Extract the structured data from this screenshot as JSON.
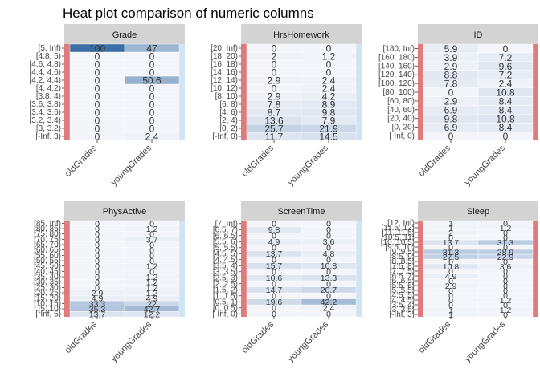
{
  "chart_data": {
    "type": "heatmap",
    "title": "Heat plot comparison of numeric columns",
    "columns": [
      "oldGrades",
      "youngGrades"
    ],
    "colors": {
      "low": "#f3f5fa",
      "high": "#3b6ea5",
      "strip_bg": "#d3d3d3",
      "left_bar": "#e07b7b",
      "right_bar_blue": "#cfe4f5"
    },
    "panels": [
      {
        "name": "Grade",
        "rows": [
          "[-Inf, 3)",
          "[3, 3.2)",
          "[3.2, 3.4)",
          "[3.4, 3.6)",
          "[3.6, 3.8)",
          "[3.8, 4)",
          "[4, 4.2)",
          "[4.2, 4.4)",
          "[4.4, 4.6)",
          "[4.6, 4.8)",
          "[4.8, 5)",
          "[5, Inf)"
        ],
        "values": [
          [
            0,
            2.4
          ],
          [
            0,
            0
          ],
          [
            0,
            0
          ],
          [
            0,
            0
          ],
          [
            0,
            0
          ],
          [
            0,
            0
          ],
          [
            0,
            0
          ],
          [
            0,
            50.6
          ],
          [
            0,
            0
          ],
          [
            0,
            0
          ],
          [
            0,
            0
          ],
          [
            100,
            47
          ]
        ]
      },
      {
        "name": "HrsHomework",
        "rows": [
          "[-Inf, 0)",
          "[0, 2)",
          "[2, 4)",
          "[4, 6)",
          "[6, 8)",
          "[8, 10)",
          "[10, 12)",
          "[12, 14)",
          "[14, 16)",
          "[16, 18)",
          "[18, 20)",
          "[20, Inf)"
        ],
        "values": [
          [
            11.7,
            14.5
          ],
          [
            25.7,
            21.9
          ],
          [
            13.6,
            7.9
          ],
          [
            8.7,
            9.8
          ],
          [
            7.8,
            8.9
          ],
          [
            2.9,
            4.2
          ],
          [
            0,
            2.4
          ],
          [
            2.9,
            2.4
          ],
          [
            0,
            0
          ],
          [
            0,
            0
          ],
          [
            2,
            1.2
          ],
          [
            0,
            0
          ]
        ]
      },
      {
        "name": "ID",
        "rows": [
          "[-Inf, 0)",
          "[0, 20)",
          "[20, 40)",
          "[40, 60)",
          "[60, 80)",
          "[80, 100)",
          "[100, 120)",
          "[120, 140)",
          "[140, 160)",
          "[160, 180)",
          "[180, Inf)"
        ],
        "values": [
          [
            0,
            0
          ],
          [
            6.9,
            8.4
          ],
          [
            9.8,
            10.8
          ],
          [
            6.9,
            8.4
          ],
          [
            2.9,
            8.4
          ],
          [
            0,
            10.8
          ],
          [
            7.8,
            2.4
          ],
          [
            8.8,
            7.2
          ],
          [
            2.9,
            9.6
          ],
          [
            3.9,
            7.2
          ],
          [
            5.9,
            0
          ]
        ]
      },
      {
        "name": "PhysActive",
        "rows": [
          "[-Inf, 5)",
          "[5, 10)",
          "[10, 15)",
          "[15, 20)",
          "[20, 25)",
          "[25, 30)",
          "[30, 35)",
          "[35, 40)",
          "[40, 45)",
          "[45, 50)",
          "[50, 55)",
          "[55, 60)",
          "[60, 65)",
          "[65, 70)",
          "[70, 75)",
          "[75, 80)",
          "[80, 85)",
          "[85, Inf)"
        ],
        "values": [
          [
            13.7,
            12.2
          ],
          [
            35.3,
            42.7
          ],
          [
            33.3,
            22
          ],
          [
            4.9,
            4.9
          ],
          [
            2.9,
            1.2
          ],
          [
            0,
            1.2
          ],
          [
            0,
            1.2
          ],
          [
            0,
            1.2
          ],
          [
            0,
            0
          ],
          [
            0,
            1.2
          ],
          [
            0,
            0
          ],
          [
            0,
            0
          ],
          [
            0,
            0
          ],
          [
            0,
            0
          ],
          [
            0,
            3.7
          ],
          [
            0,
            0
          ],
          [
            0,
            1.2
          ],
          [
            0,
            0
          ]
        ]
      },
      {
        "name": "ScreenTime",
        "rows": [
          "[-Inf, 0)",
          "[0, 0.5)",
          "[0.5, 1)",
          "[1, 1.5)",
          "[1.5, 2)",
          "[2, 2.5)",
          "[2.5, 3)",
          "[3, 3.5)",
          "[3.5, 4)",
          "[4, 4.5)",
          "[4.5, 5)",
          "[5, 5.5)",
          "[5.5, 6)",
          "[6, 6.5)",
          "[6.5, 7)",
          "[7, Inf)"
        ],
        "values": [
          [
            0,
            0
          ],
          [
            0,
            2.4
          ],
          [
            19.6,
            42.2
          ],
          [
            0,
            0
          ],
          [
            14.7,
            20.7
          ],
          [
            0,
            0
          ],
          [
            10.6,
            13.3
          ],
          [
            0,
            0
          ],
          [
            15.7,
            10.8
          ],
          [
            0,
            0
          ],
          [
            13.7,
            4.8
          ],
          [
            0,
            0
          ],
          [
            4.9,
            3.6
          ],
          [
            0,
            0
          ],
          [
            9.8,
            0
          ],
          [
            0,
            0
          ]
        ]
      },
      {
        "name": "Sleep",
        "rows": [
          "[-Inf, 3)",
          "[3, 3.5)",
          "[3.5, 4)",
          "[4, 4.5)",
          "[4.5, 5)",
          "[5, 5.5)",
          "[5.5, 6)",
          "[6, 6.5)",
          "[6.5, 7)",
          "[7, 7.5)",
          "[7.5, 8)",
          "[8, 8.5)",
          "[8.5, 9)",
          "[9, 9.5)",
          "[9.5, 10)",
          "[10, 10.5)",
          "[10.5, 11)",
          "[11, 11.5)",
          "[11.5, 12)",
          "[12, Inf)"
        ],
        "values": [
          [
            1,
            0
          ],
          [
            1,
            1.2
          ],
          [
            0,
            0
          ],
          [
            0,
            1.2
          ],
          [
            0,
            0
          ],
          [
            0,
            0
          ],
          [
            2.9,
            0
          ],
          [
            0,
            0
          ],
          [
            4.9,
            0
          ],
          [
            0,
            0
          ],
          [
            10.8,
            3.6
          ],
          [
            0,
            0
          ],
          [
            27.5,
            22.9
          ],
          [
            31.3,
            28.9
          ],
          [
            0,
            0
          ],
          [
            13.7,
            31.3
          ],
          [
            0,
            0
          ],
          [
            2,
            0
          ],
          [
            1,
            1.2
          ],
          [
            1,
            0
          ]
        ]
      }
    ]
  }
}
